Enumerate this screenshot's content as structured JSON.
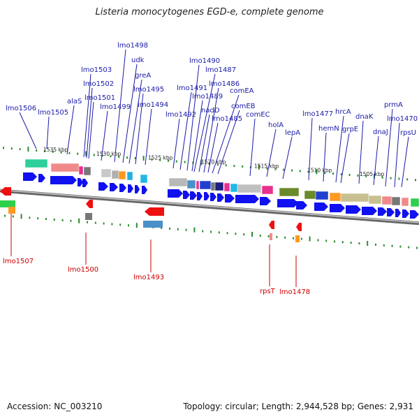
{
  "title": "Listeria monocytogenes EGD-e, complete genome",
  "footer": {
    "accession": "Accession: NC_003210",
    "summary": "Topology: circular; Length: 2,944,528 bp; Genes: 2,931"
  },
  "colors": {
    "forward_label": "#1a1aa8",
    "reverse_label": "#cc0000",
    "backbone": "#8a8a8a",
    "tick": "#2e8b2e",
    "forward_arrow": "#1010f0",
    "reverse_arrow": "#ee1010"
  },
  "scale_labels": [
    "1535 kbp",
    "1530 kbp",
    "1525 kbp",
    "1520 kbp",
    "1515 kbp",
    "1510 kbp",
    "1505 kbp"
  ],
  "forward_genes": [
    "lmo1506",
    "lmo1505",
    "alaS",
    "lmo1503",
    "lmo1502",
    "lmo1501",
    "lmo1499",
    "lmo1498",
    "udk",
    "greA",
    "lmo1495",
    "lmo1494",
    "lmo1492",
    "lmo1491",
    "lmo1490",
    "lmo1489",
    "lmo1487",
    "nadD",
    "lmo1486",
    "lmo1485",
    "comEA",
    "comEB",
    "comEC",
    "holA",
    "lepA",
    "lmo1477",
    "hemN",
    "hrcA",
    "grpE",
    "dnaK",
    "dnaJ",
    "prmA",
    "lmo1470",
    "rpsU"
  ],
  "reverse_genes": [
    "lmo1507",
    "lmo1500",
    "lmo1493",
    "rpsT",
    "lmo1478"
  ]
}
